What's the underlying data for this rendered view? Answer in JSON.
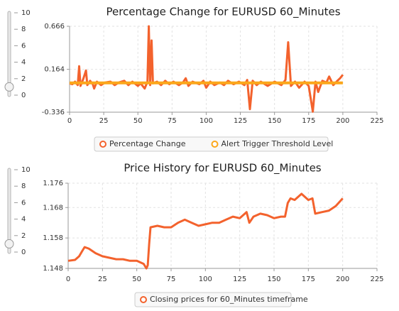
{
  "chart_data": [
    {
      "type": "line",
      "title": "Percentage Change for EURUSD 60_Minutes",
      "xlim": [
        0,
        225
      ],
      "xticks": [
        0,
        25,
        50,
        75,
        100,
        125,
        150,
        175,
        200,
        225
      ],
      "ylim": [
        -0.336,
        0.666
      ],
      "yticks": [
        -0.336,
        0.164,
        0.666
      ],
      "grid": true,
      "series": [
        {
          "name": "Percentage Change",
          "color": "#f3622d",
          "x": [
            0,
            2,
            4,
            6,
            7,
            8,
            10,
            12,
            13,
            15,
            17,
            18,
            20,
            23,
            26,
            30,
            33,
            36,
            40,
            43,
            46,
            50,
            52,
            55,
            57,
            58,
            59,
            60,
            61,
            64,
            67,
            70,
            73,
            76,
            80,
            83,
            85,
            87,
            90,
            95,
            98,
            100,
            103,
            106,
            110,
            113,
            116,
            120,
            124,
            128,
            130,
            132,
            134,
            137,
            140,
            145,
            150,
            155,
            158,
            160,
            162,
            165,
            168,
            172,
            175,
            178,
            180,
            182,
            185,
            188,
            190,
            193,
            196,
            198,
            200
          ],
          "values": [
            0.0,
            -0.01,
            0.02,
            -0.02,
            0.2,
            -0.03,
            0.05,
            0.15,
            -0.02,
            0.03,
            -0.01,
            -0.06,
            0.02,
            -0.02,
            0.01,
            0.02,
            -0.02,
            0.01,
            0.03,
            -0.02,
            0.02,
            -0.03,
            0.0,
            -0.06,
            0.02,
            0.666,
            -0.02,
            0.5,
            0.0,
            0.02,
            -0.02,
            0.03,
            -0.01,
            0.02,
            -0.02,
            0.01,
            0.06,
            -0.03,
            0.02,
            -0.01,
            0.03,
            -0.05,
            0.02,
            -0.02,
            0.01,
            -0.02,
            0.03,
            -0.01,
            0.02,
            -0.02,
            0.04,
            -0.3,
            0.03,
            -0.02,
            0.02,
            -0.03,
            0.02,
            -0.02,
            0.04,
            0.48,
            -0.03,
            0.02,
            -0.05,
            0.02,
            -0.03,
            -0.33,
            0.02,
            -0.1,
            0.03,
            0.01,
            0.08,
            -0.02,
            0.03,
            0.06,
            0.1
          ]
        },
        {
          "name": "Alert Trigger Threshold Level",
          "color": "#fba71b",
          "x": [
            0,
            200
          ],
          "values": [
            0.005,
            0.005
          ]
        }
      ]
    },
    {
      "type": "line",
      "title": "Price History for EURUSD 60_Minutes",
      "xlim": [
        0,
        225
      ],
      "xticks": [
        0,
        25,
        50,
        75,
        100,
        125,
        150,
        175,
        200,
        225
      ],
      "ylim": [
        1.148,
        1.176
      ],
      "yticks": [
        1.148,
        1.158,
        1.168,
        1.176
      ],
      "grid": true,
      "series": [
        {
          "name": "Closing prices for 60_Minutes timeframe",
          "color": "#f3622d",
          "x": [
            0,
            5,
            8,
            10,
            12,
            15,
            20,
            25,
            30,
            35,
            40,
            45,
            50,
            55,
            57,
            58,
            59,
            60,
            65,
            70,
            75,
            80,
            85,
            90,
            95,
            100,
            105,
            110,
            115,
            120,
            125,
            130,
            132,
            135,
            140,
            145,
            150,
            155,
            158,
            160,
            162,
            165,
            170,
            175,
            178,
            180,
            185,
            190,
            195,
            200
          ],
          "values": [
            1.1505,
            1.1508,
            1.152,
            1.1535,
            1.155,
            1.1545,
            1.153,
            1.152,
            1.1515,
            1.151,
            1.151,
            1.1505,
            1.1505,
            1.1495,
            1.148,
            1.149,
            1.156,
            1.1615,
            1.162,
            1.1615,
            1.1615,
            1.163,
            1.164,
            1.163,
            1.162,
            1.1625,
            1.163,
            1.163,
            1.164,
            1.165,
            1.1645,
            1.1665,
            1.163,
            1.165,
            1.166,
            1.1655,
            1.1645,
            1.165,
            1.165,
            1.1695,
            1.171,
            1.1705,
            1.1725,
            1.1705,
            1.171,
            1.166,
            1.1665,
            1.167,
            1.1685,
            1.171
          ]
        }
      ]
    }
  ],
  "sliders": [
    {
      "min": 0,
      "max": 10,
      "ticks": [
        0,
        2,
        4,
        6,
        8,
        10
      ],
      "value": 1
    },
    {
      "min": 0,
      "max": 10,
      "ticks": [
        0,
        2,
        4,
        6,
        8,
        10
      ],
      "value": 1
    }
  ]
}
